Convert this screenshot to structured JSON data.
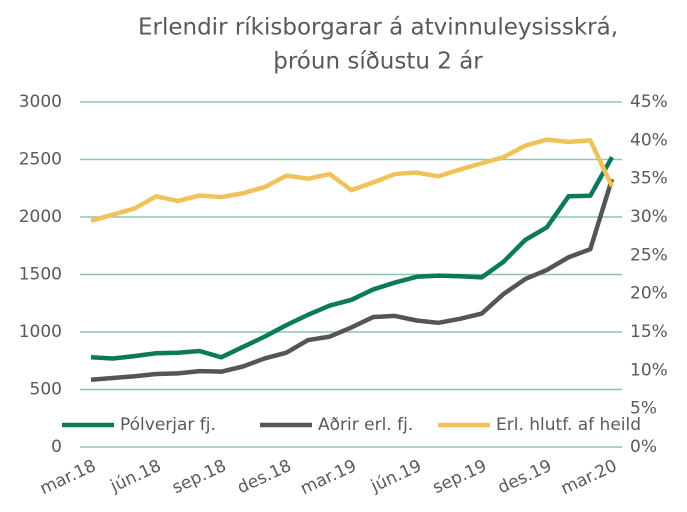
{
  "chart_data": {
    "type": "line",
    "title": [
      "Erlendir ríkisborgarar á atvinnuleysisskrá,",
      "þróun síðustu 2 ár"
    ],
    "categories": [
      "mar.18",
      null,
      null,
      "jún.18",
      null,
      null,
      "sep.18",
      null,
      null,
      "des.18",
      null,
      null,
      "mar.19",
      null,
      null,
      "jún.19",
      null,
      null,
      "sep.19",
      null,
      null,
      "des.19",
      null,
      null,
      "mar.20"
    ],
    "series": [
      {
        "name": "Pólverjar fj.",
        "color": "#0b7a5a",
        "values": [
          780,
          770,
          790,
          815,
          820,
          835,
          780,
          870,
          960,
          1060,
          1150,
          1230,
          1280,
          1370,
          1430,
          1480,
          1490,
          1485,
          1475,
          1610,
          1800,
          1910,
          2180,
          2185,
          2520
        ]
      },
      {
        "name": "Aðrir erl. fj.",
        "color": "#555555",
        "values": [
          585,
          600,
          615,
          635,
          640,
          660,
          655,
          700,
          770,
          820,
          930,
          960,
          1040,
          1130,
          1140,
          1100,
          1080,
          1115,
          1160,
          1330,
          1460,
          1540,
          1650,
          1720,
          2330
        ]
      },
      {
        "name": "Erl. hlutf. af heild",
        "color": "#efc25a",
        "axis": "y2",
        "values": [
          29.5,
          30.3,
          31.1,
          32.7,
          32.1,
          32.8,
          32.6,
          33.1,
          33.9,
          35.4,
          35.0,
          35.6,
          33.5,
          34.5,
          35.6,
          35.8,
          35.3,
          36.2,
          37.0,
          37.8,
          39.3,
          40.1,
          39.8,
          40.0,
          34.0
        ]
      }
    ],
    "ylim": [
      0,
      3000
    ],
    "yticks": [
      0,
      500,
      1000,
      1500,
      2000,
      2500,
      3000
    ],
    "y2lim": [
      0,
      45
    ],
    "y2ticks": [
      {
        "value": 0,
        "label": "0%"
      },
      {
        "value": 5,
        "label": "5%"
      },
      {
        "value": 10,
        "label": "10%"
      },
      {
        "value": 15,
        "label": "15%"
      },
      {
        "value": 20,
        "label": "20%"
      },
      {
        "value": 25,
        "label": "25%"
      },
      {
        "value": 30,
        "label": "30%"
      },
      {
        "value": 35,
        "label": "35%"
      },
      {
        "value": 40,
        "label": "40%"
      },
      {
        "value": 45,
        "label": "45%"
      }
    ],
    "grid": true,
    "grid_color": "#8cc5b5",
    "legend": "bottom"
  }
}
